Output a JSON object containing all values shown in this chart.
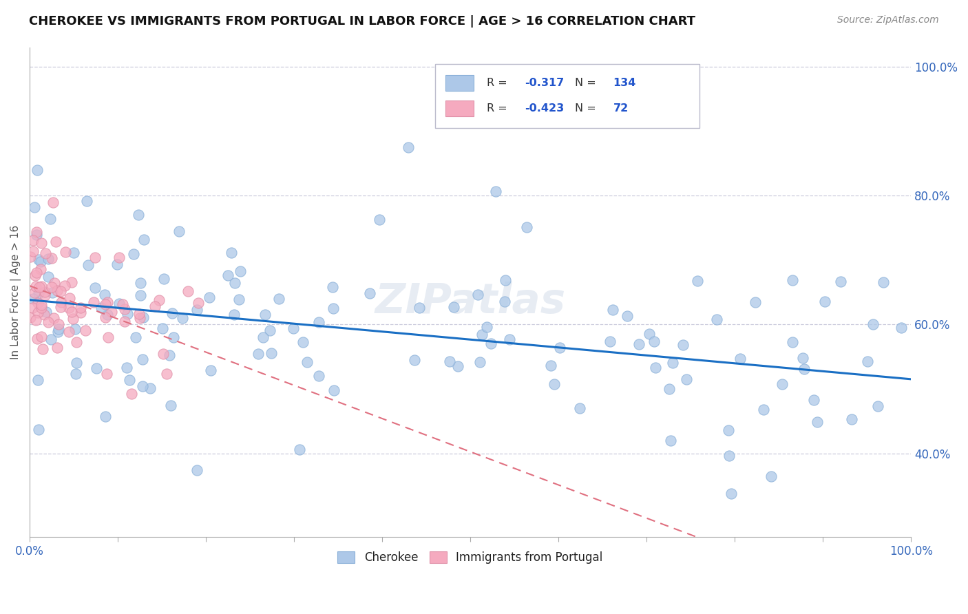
{
  "title": "CHEROKEE VS IMMIGRANTS FROM PORTUGAL IN LABOR FORCE | AGE > 16 CORRELATION CHART",
  "source": "Source: ZipAtlas.com",
  "ylabel": "In Labor Force | Age > 16",
  "legend_v1": "-0.317",
  "legend_nv1": "134",
  "legend_v2": "-0.423",
  "legend_nv2": "72",
  "cherokee_color": "#adc8e8",
  "portugal_color": "#f5aabf",
  "trend_cherokee_color": "#1a6fc4",
  "trend_portugal_color": "#e07080",
  "background_color": "#ffffff",
  "grid_color": "#ccccdd",
  "xlim": [
    0,
    100
  ],
  "ylim": [
    0.27,
    1.03
  ],
  "ytick_positions": [
    0.4,
    0.6,
    0.8,
    1.0
  ],
  "ytick_labels": [
    "40.0%",
    "60.0%",
    "80.0%",
    "100.0%"
  ],
  "figsize": [
    14.06,
    8.92
  ],
  "dpi": 100,
  "cherokee_trend_start_y": 0.638,
  "cherokee_trend_end_y": 0.515,
  "portugal_trend_start_y": 0.66,
  "portugal_trend_end_y": 0.145
}
